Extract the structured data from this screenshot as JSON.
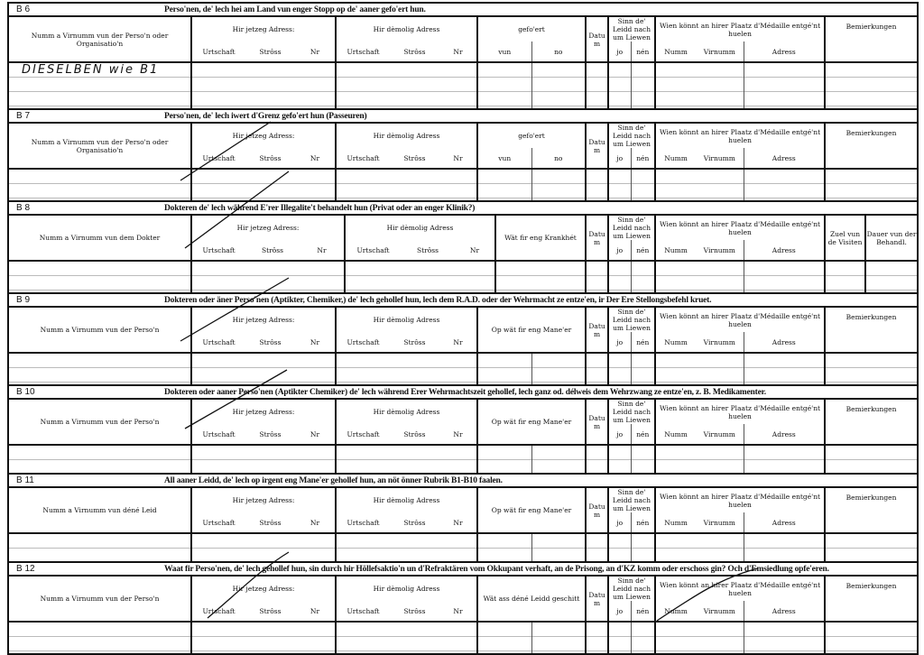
{
  "labels": {
    "jetzeg": "Hir jetzeg Adress:",
    "demolig": "Hir dèmolig Adress",
    "urtschaft": "Urtschaft",
    "stross": "Strôss",
    "nr": "Nr",
    "datum": "Datum",
    "sinn": "Sinn de' Leidd nach um Liewen",
    "jo": "jo",
    "nen": "nén",
    "wien": "Wien könnt an hirer Plaatz d'Médaille entgé'nt huelen",
    "numm": "Numm",
    "virnumm": "Virnumm",
    "adress": "Adress",
    "bemierkungen": "Bemierkungen",
    "zuel": "Zuel vun de Visiten",
    "dauer": "Dauer vun der Behandl."
  },
  "sections": [
    {
      "code": "B 6",
      "title": "Perso'nen, de' lech hei am Land vun enger Stopp  op de' aaner gefo'ert hun.",
      "name_header": "Numm a Virnumm vun der Perso'n oder Organisatio'n",
      "col3": "gefo'ert",
      "col3_sub": [
        "vun",
        "no"
      ],
      "handwritten": "DIESELBEN  wie B1"
    },
    {
      "code": "B 7",
      "title": "Perso'nen, de' lech iwert d'Grenz gefo'ert hun  (Passeuren)",
      "name_header": "Numm a Virnumm vun der Perso'n oder Organisatio'n",
      "col3": "gefo'ert",
      "col3_sub": [
        "vun",
        "no"
      ]
    },
    {
      "code": "B 8",
      "title": "Dokteren de' lech während E'rer Illegalite't behandelt hun (Privat oder an enger Klinik?)",
      "name_header": "Numm a Virnumm vun dem Dokter",
      "col3": "Wät fir eng Krankhét",
      "doctor": true
    },
    {
      "code": "B 9",
      "title": "Dokteren oder äner Perso'nen (Aptikter, Chemiker,) de' lech gehollef hun, lech dem R.A.D. oder der Wehrmacht ze entze'en, ir Der Ere Stellongsbefehl kruet.",
      "name_header": "Numm a Virnumm vun der Perso'n",
      "col3": "Op wät fir eng Mane'er"
    },
    {
      "code": "B 10",
      "title": "Dokteren oder aaner Perso'nen (Aptikter Chemiker) de' lech während Erer Wehrmachtszeit gehollef, lech ganz od. délweis dem Wehrzwang ze entze'en, z. B. Medikamenter.",
      "name_header": "Numm a Virnumm vun der Perso'n",
      "col3": "Op wät fir eng Mane'er"
    },
    {
      "code": "B 11",
      "title": "All aaner Leidd, de' lech op irgent eng Mane'er gehollef hun, an nöt önner Rubrik B1-B10 faalen.",
      "name_header": "Numm a Virnumm vun déné Leid",
      "col3": "Op wät fir eng Mane'er"
    },
    {
      "code": "B 12",
      "title": "Waat fir Perso'nen, de' lech gehollef hun, sin durch hir Höllefsaktio'n un d'Refraktären vom Okkupant verhaft, an de Prisong, an d'KZ komm oder erschoss gin? Och d'Emsiedlung opfe'eren.",
      "name_header": "Numm a Virnumm vun der Perso'n",
      "col3": "Wät ass déné Leidd geschitt"
    }
  ]
}
